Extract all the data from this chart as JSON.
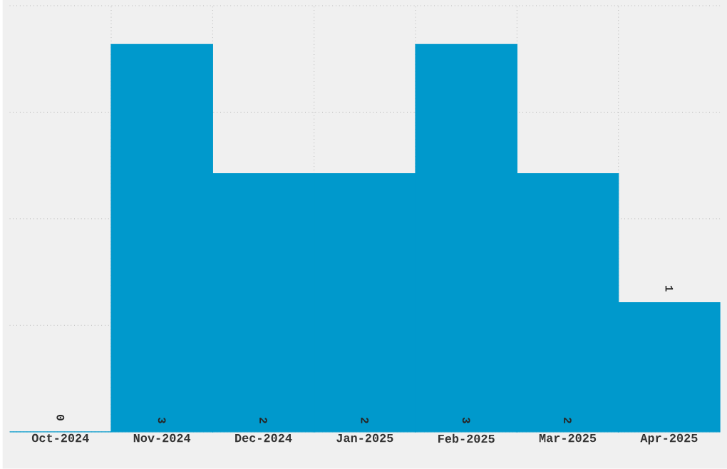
{
  "chart_data": {
    "type": "bar",
    "categories": [
      "Oct-2024",
      "Nov-2024",
      "Dec-2024",
      "Jan-2025",
      "Feb-2025",
      "Mar-2025",
      "Apr-2025"
    ],
    "values": [
      0,
      3,
      2,
      2,
      3,
      2,
      1
    ],
    "color": "#0099cc",
    "data_labels": true,
    "grid": true,
    "tick_labels": "x",
    "ylim": [
      0,
      3.3
    ],
    "yticks": [
      {
        "value": 0,
        "label": null
      },
      {
        "value": 0.825,
        "label": null
      },
      {
        "value": 1.65,
        "label": null
      },
      {
        "value": 2.475,
        "label": null
      },
      {
        "value": 3.3,
        "label": null
      }
    ]
  }
}
